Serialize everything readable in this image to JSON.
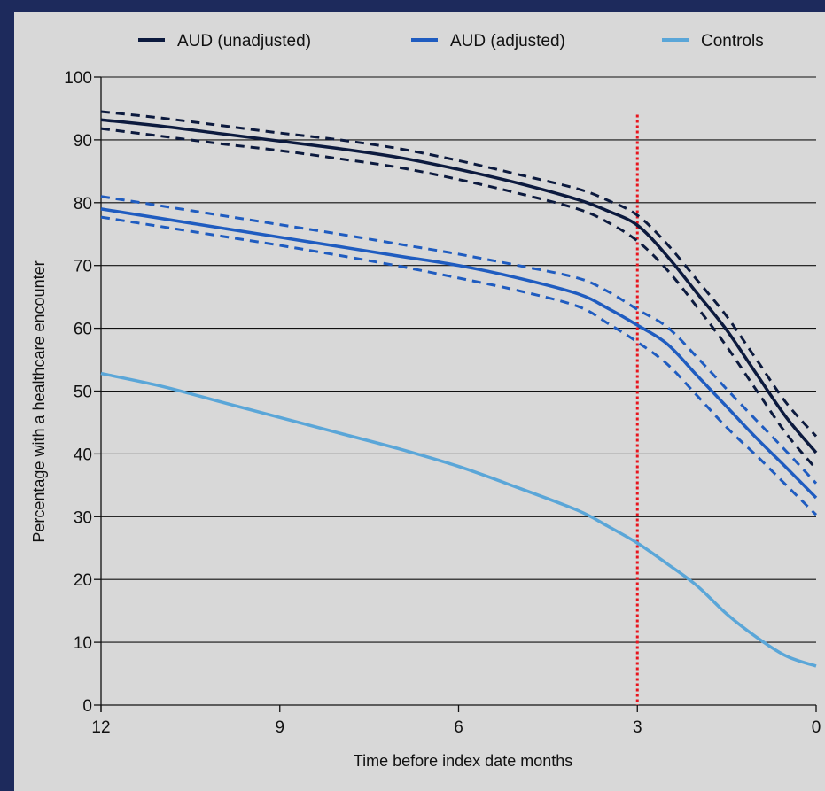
{
  "chart_data": {
    "type": "line",
    "xlabel": "Time before index date months",
    "ylabel": "Percentage with a healthcare encounter",
    "xlim": [
      12,
      0
    ],
    "ylim": [
      0,
      100
    ],
    "x_ticks": [
      "12",
      "9",
      "6",
      "3",
      "0"
    ],
    "y_ticks": [
      "0",
      "10",
      "20",
      "30",
      "40",
      "50",
      "60",
      "70",
      "80",
      "90",
      "100"
    ],
    "grid": "horizontal",
    "legend_position": "top",
    "reference_line": {
      "x": 3,
      "style": "dotted",
      "color": "#e8141c"
    },
    "series": [
      {
        "name": "AUD (unadjusted)",
        "color": "#0c1a3e",
        "x": [
          12,
          11,
          10,
          9,
          8,
          7,
          6,
          5,
          4,
          3.5,
          3,
          2.5,
          2,
          1.5,
          1,
          0.5,
          0
        ],
        "values": [
          93.2,
          92.2,
          91,
          89.8,
          88.6,
          87.2,
          85.3,
          83.1,
          80.5,
          78.7,
          76.4,
          71.5,
          65.6,
          59.7,
          52.7,
          45.8,
          40.2
        ],
        "lower": [
          91.8,
          90.6,
          89.4,
          88.3,
          87,
          85.6,
          83.7,
          81.5,
          79,
          76.9,
          73.9,
          69.3,
          63.4,
          57.1,
          50.1,
          43.2,
          37.6
        ],
        "upper": [
          94.5,
          93.5,
          92.3,
          91.1,
          90,
          88.6,
          86.7,
          84.5,
          82.2,
          80.4,
          78,
          73.4,
          67.7,
          61.9,
          55,
          48.1,
          42.8
        ]
      },
      {
        "name": "AUD (adjusted)",
        "color": "#1f5cc0",
        "x": [
          12,
          11,
          10,
          9,
          8,
          7,
          6,
          5,
          4,
          3.5,
          3,
          2.5,
          2,
          1.5,
          1,
          0.5,
          0
        ],
        "values": [
          79,
          77.5,
          76,
          74.5,
          73,
          71.5,
          70,
          68,
          65.5,
          63.2,
          60.5,
          57.5,
          52.5,
          47.5,
          42.5,
          37.8,
          33
        ],
        "lower": [
          77.7,
          76.2,
          74.7,
          73.2,
          71.6,
          69.9,
          68,
          66,
          63.5,
          60.8,
          57.8,
          54.3,
          49.3,
          44.2,
          39.7,
          35,
          30.3
        ],
        "upper": [
          81,
          79.5,
          78,
          76.5,
          75,
          73.4,
          71.8,
          70,
          68,
          65.9,
          63,
          60.2,
          55.4,
          50.3,
          45.3,
          40.4,
          35.3
        ]
      },
      {
        "name": "Controls",
        "color": "#5aa6d8",
        "x": [
          12,
          11,
          10,
          9,
          8,
          7,
          6,
          5,
          4,
          3.5,
          3,
          2.5,
          2,
          1.5,
          1,
          0.5,
          0
        ],
        "values": [
          52.8,
          50.8,
          48.3,
          45.8,
          43.3,
          40.8,
          38,
          34.6,
          31,
          28.5,
          25.8,
          22.5,
          19,
          14.5,
          10.8,
          7.8,
          6.2
        ]
      }
    ]
  }
}
